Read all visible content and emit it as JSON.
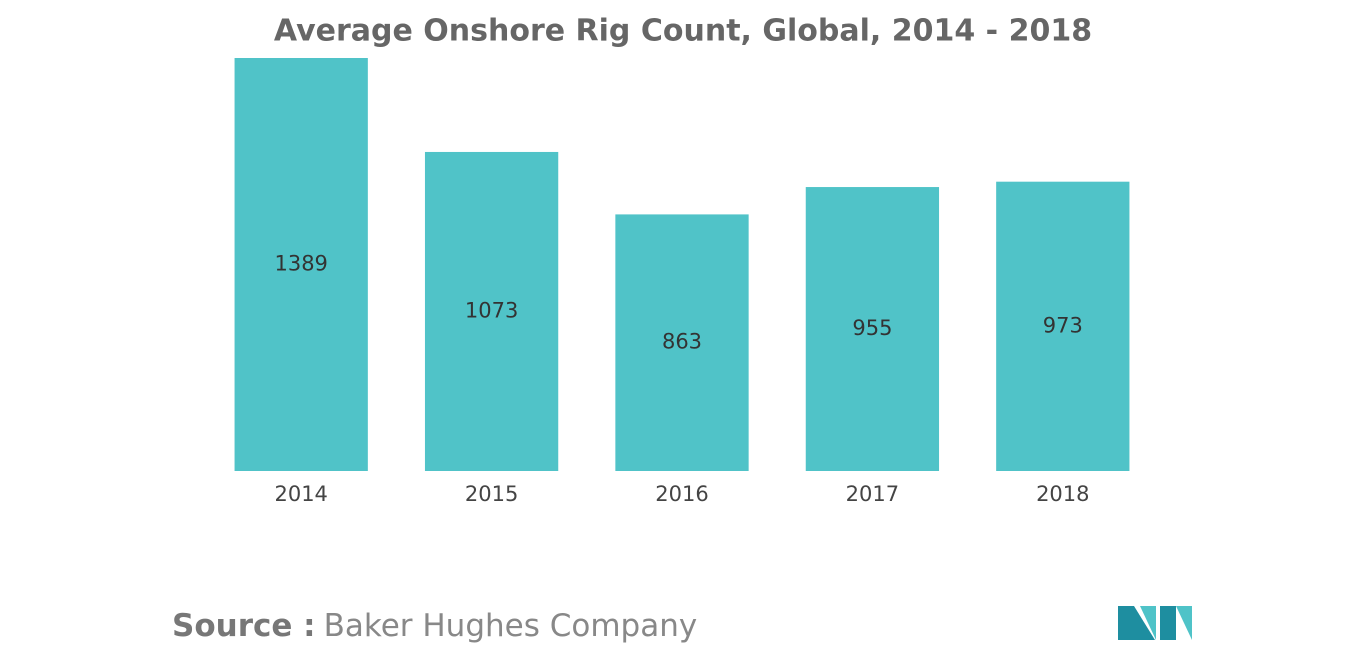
{
  "chart_data": {
    "type": "bar",
    "title": "Average Onshore Rig Count, Global, 2014 - 2018",
    "categories": [
      "2014",
      "2015",
      "2016",
      "2017",
      "2018"
    ],
    "values": [
      1389,
      1073,
      863,
      955,
      973
    ],
    "color": "#50c3c8",
    "ylim": [
      0,
      1389
    ],
    "source_label": "Source :",
    "source": "Baker Hughes Company"
  }
}
